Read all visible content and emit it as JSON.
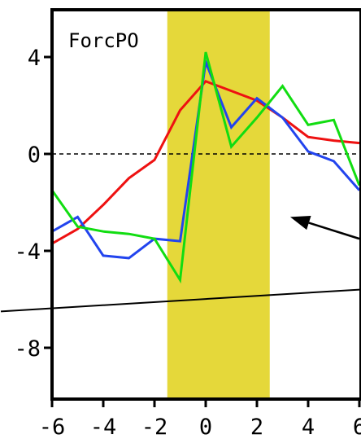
{
  "chart_data": {
    "type": "line",
    "panel_label": "ForcPO",
    "xlim": [
      -6,
      6
    ],
    "ylim": [
      -10,
      6
    ],
    "x_ticks": [
      -6,
      -4,
      -2,
      0,
      2,
      4,
      6
    ],
    "x_tick_labels": [
      "-6",
      "-4",
      "-2",
      "0",
      "2",
      "4",
      "6"
    ],
    "y_ticks": [
      4,
      0,
      -4,
      -8
    ],
    "y_tick_labels": [
      "4",
      "0",
      "-4",
      "-8"
    ],
    "highlight_band": {
      "x_start": -1.5,
      "x_end": 2.5,
      "color": "#e5d83a"
    },
    "zero_line": {
      "y": 0,
      "style": "dashed"
    },
    "series": [
      {
        "color": "#ee1111",
        "x": [
          -6,
          -5,
          -4,
          -3,
          -2,
          -1,
          0,
          1,
          2,
          3,
          4,
          5,
          6
        ],
        "y": [
          -3.7,
          -3.1,
          -2.1,
          -1.0,
          -0.25,
          1.8,
          3.0,
          2.6,
          2.2,
          1.5,
          0.7,
          0.55,
          0.45
        ]
      },
      {
        "color": "#2244ee",
        "x": [
          -6,
          -5,
          -4,
          -3,
          -2,
          -1,
          0,
          1,
          2,
          3,
          4,
          5,
          6
        ],
        "y": [
          -3.2,
          -2.6,
          -4.2,
          -4.3,
          -3.5,
          -3.6,
          3.8,
          1.1,
          2.3,
          1.5,
          0.1,
          -0.3,
          -1.5
        ]
      },
      {
        "color": "#11dd11",
        "x": [
          -6,
          -5,
          -4,
          -3,
          -2,
          -1,
          0,
          1,
          2,
          3,
          4,
          5,
          6
        ],
        "y": [
          -1.5,
          -3.0,
          -3.2,
          -3.3,
          -3.5,
          -5.2,
          4.2,
          0.3,
          1.5,
          2.8,
          1.2,
          1.4,
          -1.3
        ]
      }
    ],
    "annotations": [
      {
        "type": "arrow",
        "color": "#000000",
        "from": [
          6.0,
          -3.5
        ],
        "to": [
          3.3,
          -2.6
        ]
      },
      {
        "type": "line",
        "color": "#000000",
        "from": [
          -8.0,
          -6.5
        ],
        "to": [
          6.0,
          -5.6
        ]
      }
    ]
  }
}
